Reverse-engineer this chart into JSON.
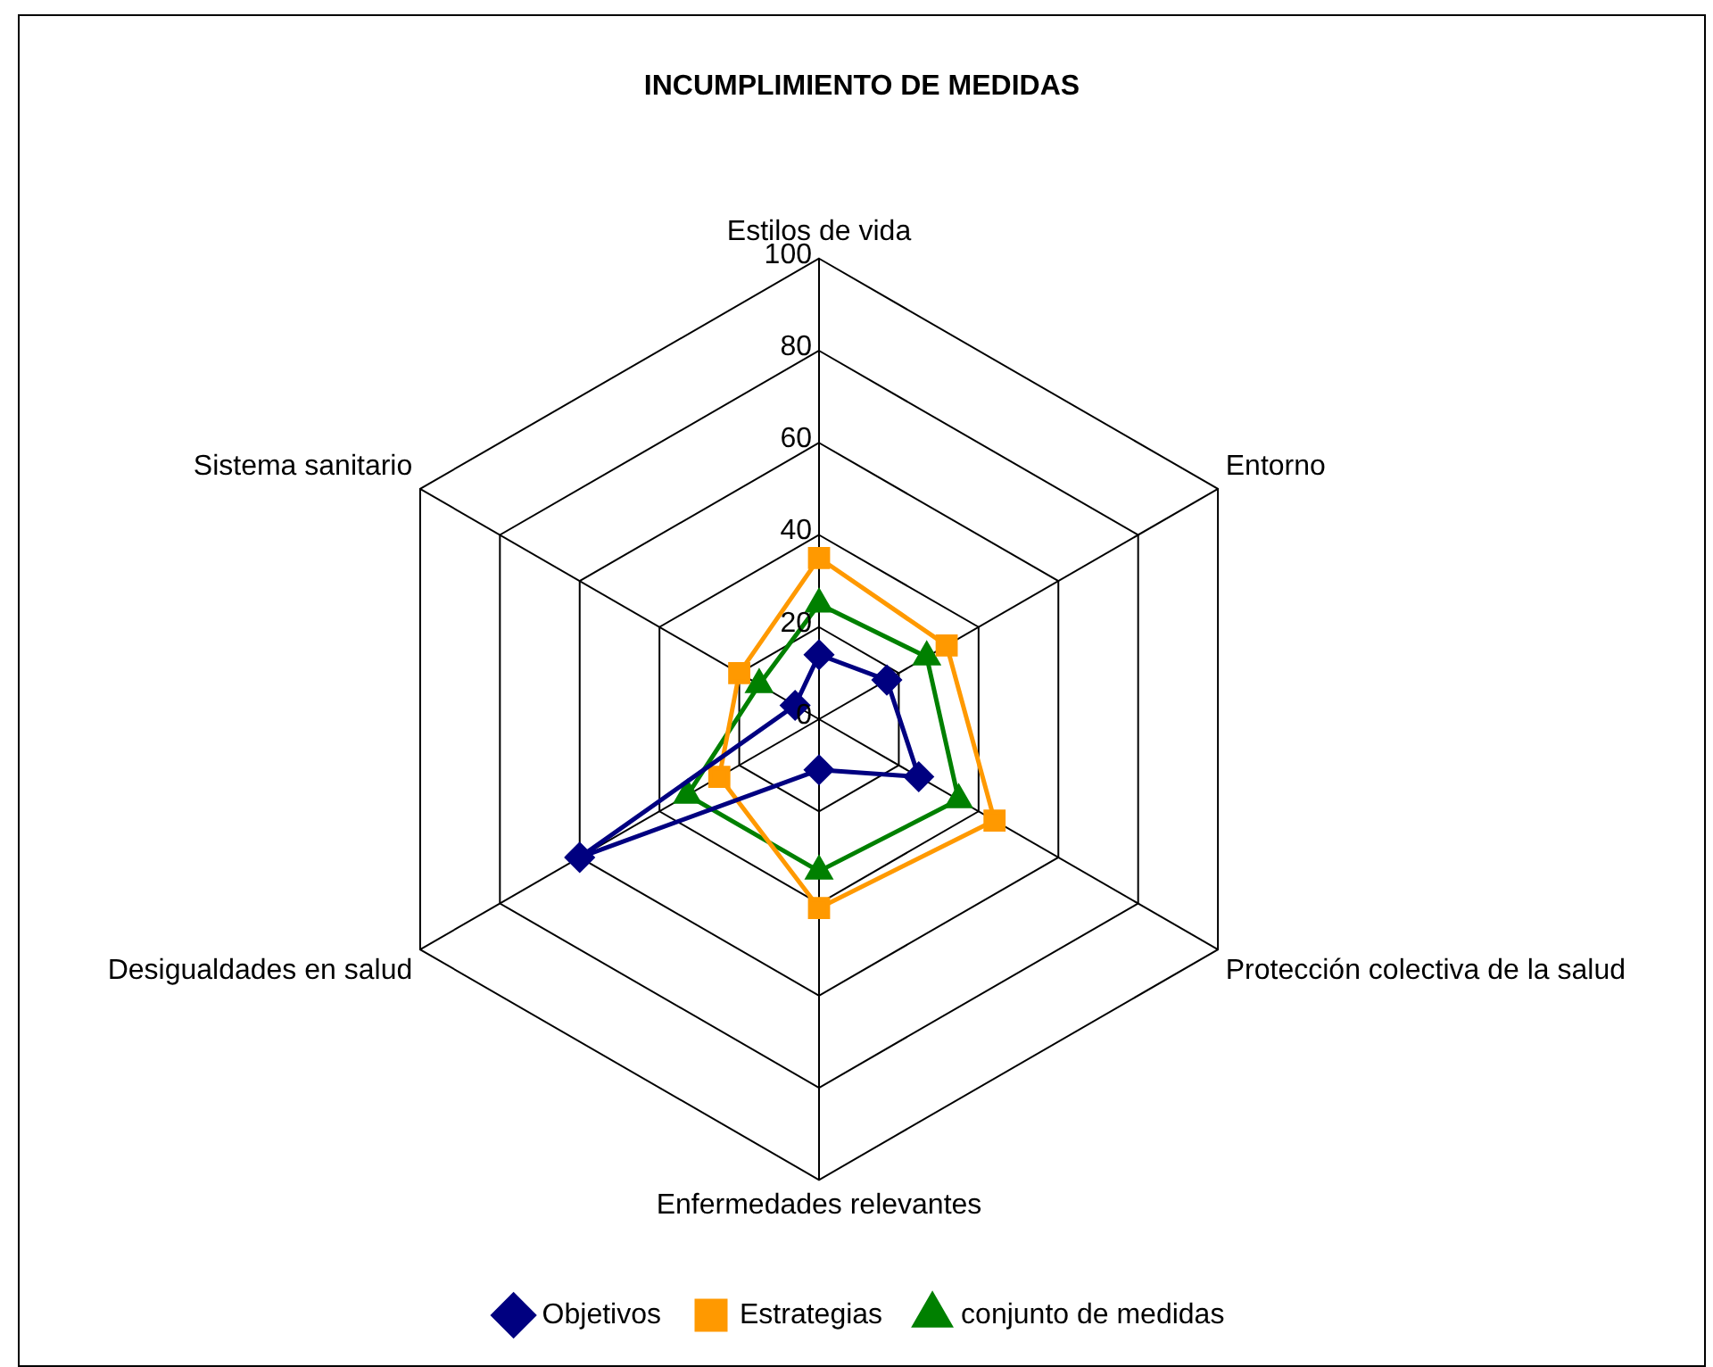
{
  "chart_data": {
    "type": "radar",
    "title": "INCUMPLIMIENTO DE MEDIDAS",
    "categories": [
      "Estilos de vida",
      "Entorno",
      "Protección colectiva de la salud",
      "Enfermedades relevantes",
      "Desigualdades en salud",
      "Sistema sanitario"
    ],
    "series": [
      {
        "name": "Objetivos",
        "color": "#000080",
        "marker": "diamond",
        "values": [
          14,
          17,
          25,
          11,
          60,
          6
        ]
      },
      {
        "name": "Estrategias",
        "color": "#ff9900",
        "marker": "square",
        "values": [
          35,
          32,
          44,
          41,
          25,
          20
        ]
      },
      {
        "name": "conjunto de medidas",
        "color": "#008000",
        "marker": "triangle",
        "values": [
          25,
          27,
          35,
          33,
          33,
          15
        ]
      }
    ],
    "ylim": [
      0,
      100
    ],
    "yticks": [
      0,
      20,
      40,
      60,
      80,
      100
    ],
    "grid": true,
    "legend": "bottom",
    "line_style": "solid"
  }
}
